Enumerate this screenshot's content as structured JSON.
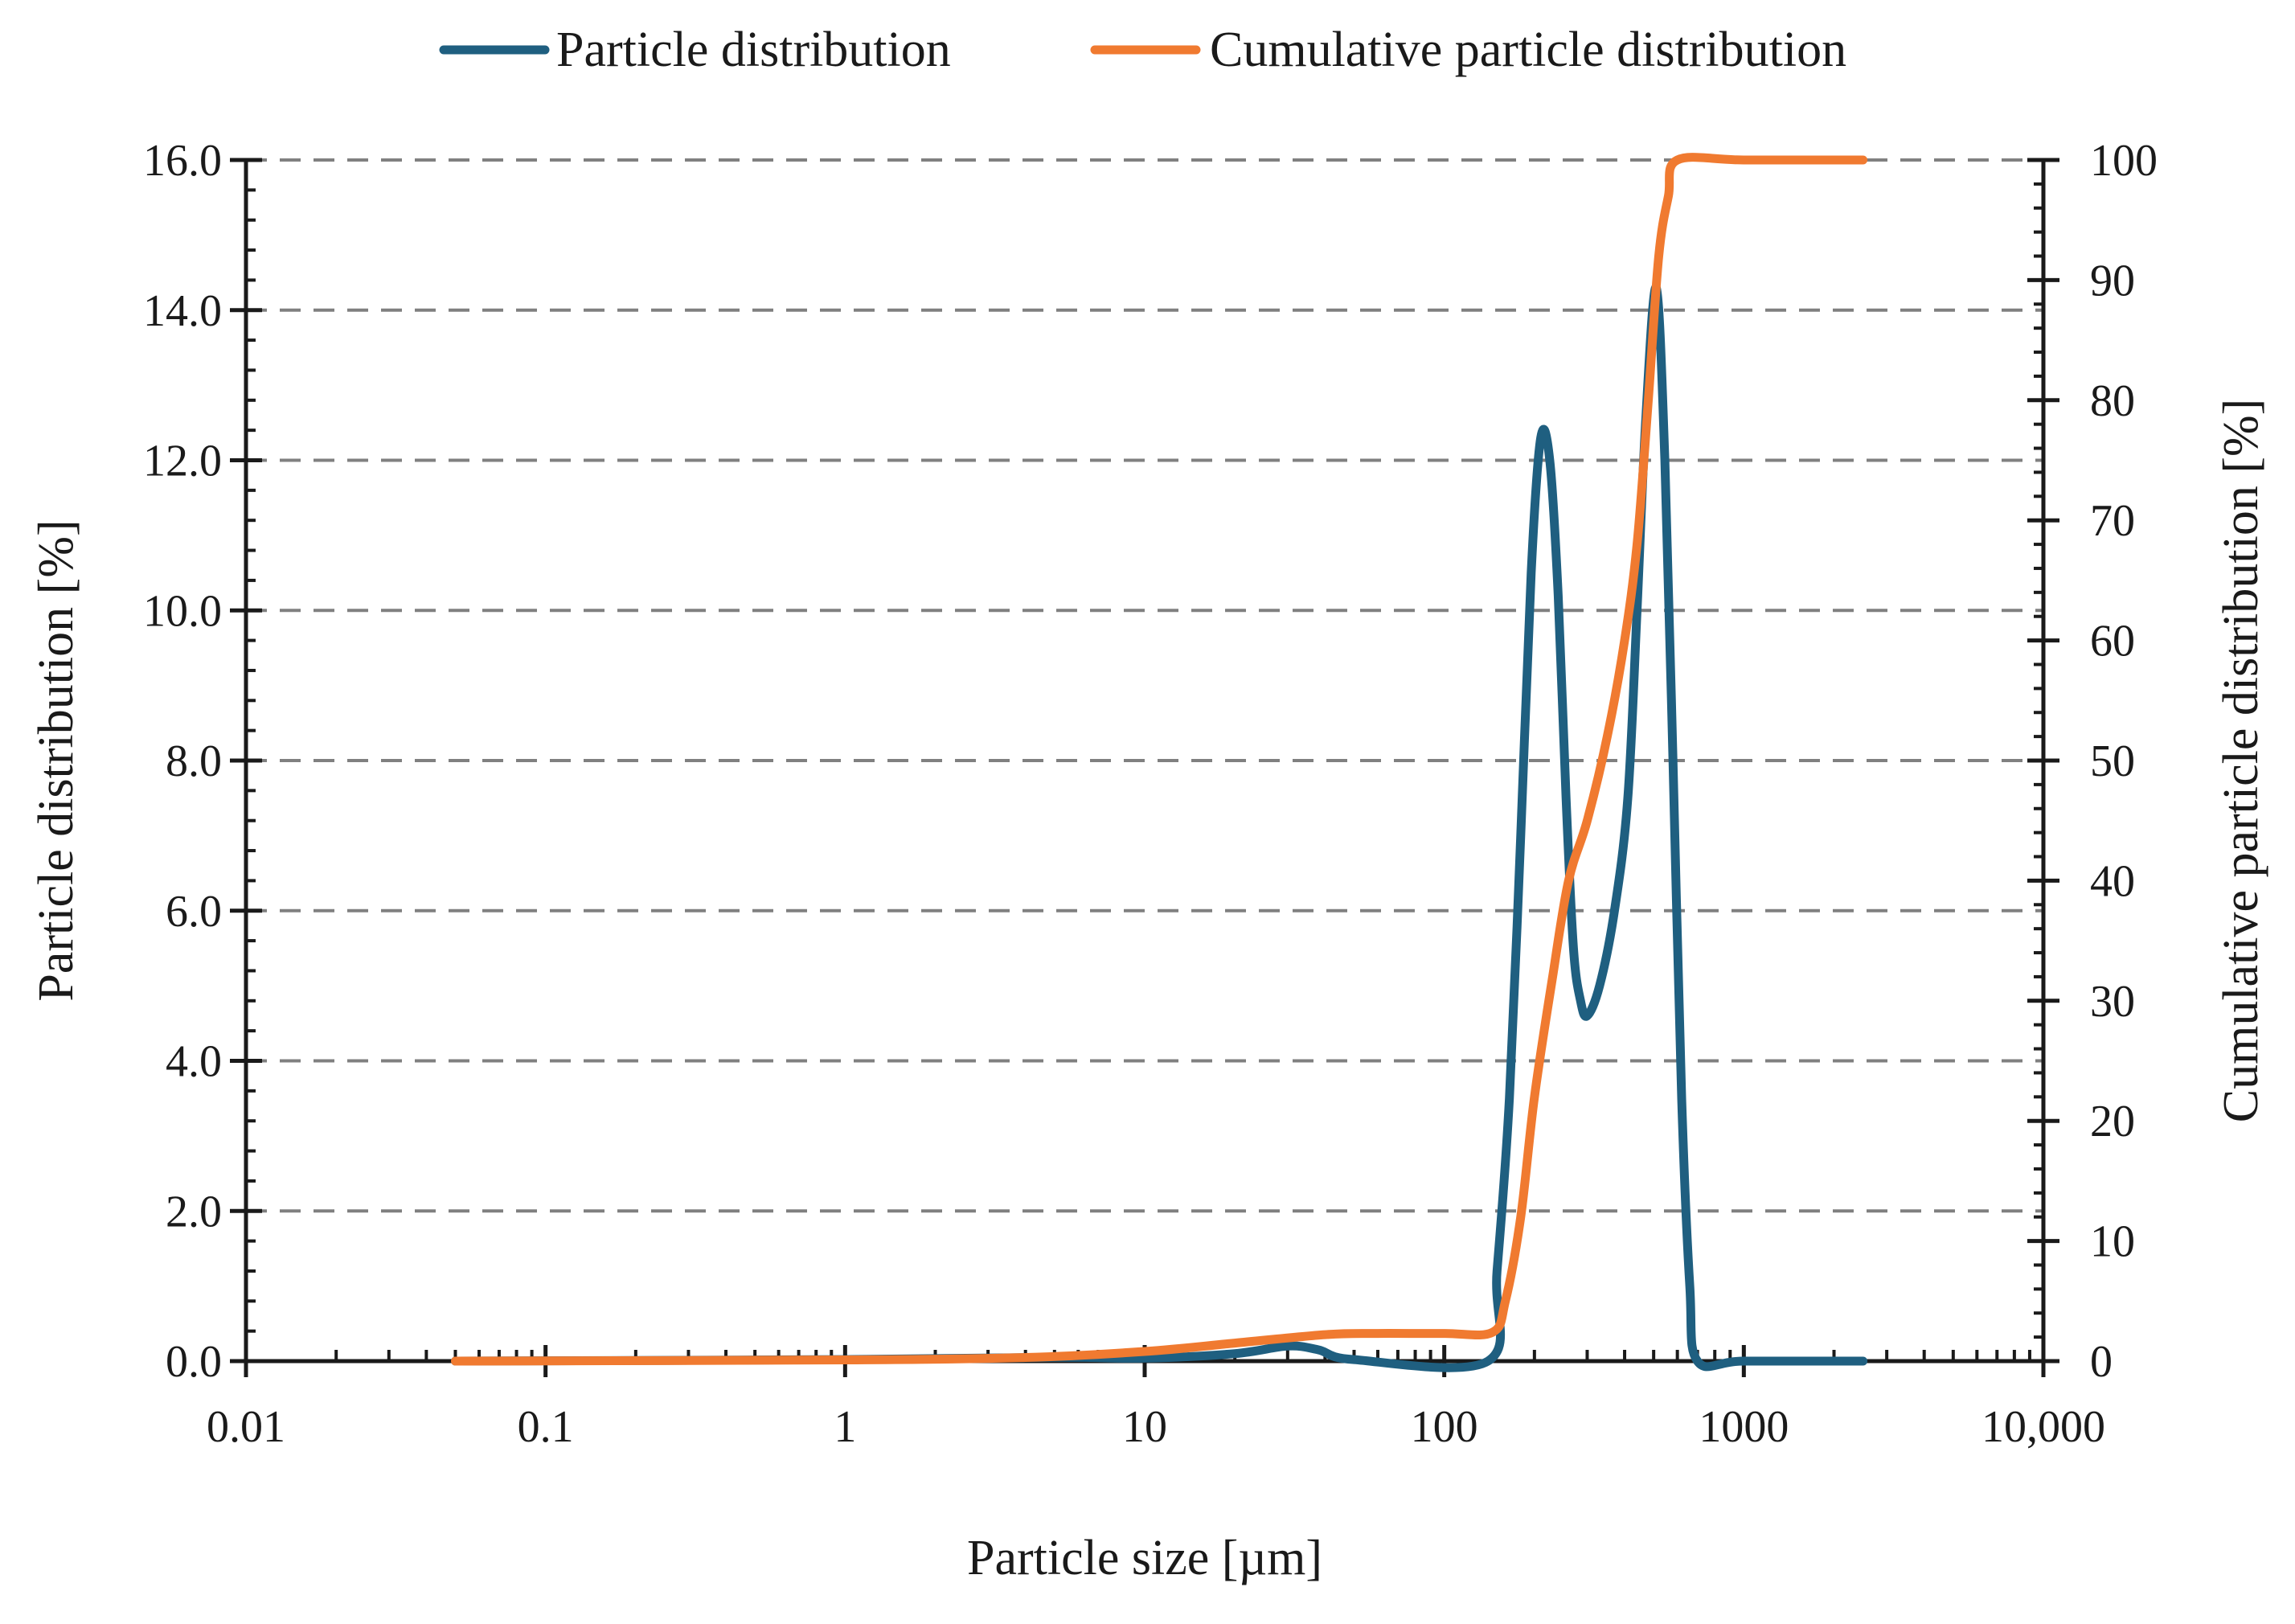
{
  "chart_data": {
    "type": "line",
    "title": "",
    "xlabel": "Particle size [µm]",
    "ylabel": "Particle distribution [%]",
    "y2label": "Cumulative particle distribution [%]",
    "xscale": "log",
    "xlim": [
      0.01,
      10000
    ],
    "ylim": [
      0,
      16
    ],
    "y2lim": [
      0,
      100
    ],
    "grid": "horizontal dashed",
    "legend": "top",
    "x_ticks": [
      "0.01",
      "0.1",
      "1",
      "10",
      "100",
      "1000",
      "10,000"
    ],
    "y_ticks": [
      "0.0",
      "2.0",
      "4.0",
      "6.0",
      "8.0",
      "10.0",
      "12.0",
      "14.0",
      "16.0"
    ],
    "y2_ticks": [
      "0",
      "10",
      "20",
      "30",
      "40",
      "50",
      "60",
      "70",
      "80",
      "90",
      "100"
    ],
    "series": [
      {
        "name": "Particle distribution",
        "axis": "left",
        "color": "#1f5f80",
        "points": [
          [
            0.05,
            0
          ],
          [
            1,
            0.02
          ],
          [
            5,
            0.05
          ],
          [
            10,
            0.04
          ],
          [
            20,
            0.1
          ],
          [
            30,
            0.2
          ],
          [
            38,
            0.15
          ],
          [
            50,
            0.02
          ],
          [
            140,
            0
          ],
          [
            150,
            1.2
          ],
          [
            165,
            3.5
          ],
          [
            180,
            7.0
          ],
          [
            195,
            10.5
          ],
          [
            210,
            12.3
          ],
          [
            225,
            12.0
          ],
          [
            240,
            10.2
          ],
          [
            255,
            7.5
          ],
          [
            270,
            5.5
          ],
          [
            285,
            4.8
          ],
          [
            300,
            4.6
          ],
          [
            330,
            5.0
          ],
          [
            370,
            6.0
          ],
          [
            410,
            7.5
          ],
          [
            440,
            10.0
          ],
          [
            470,
            12.5
          ],
          [
            510,
            14.3
          ],
          [
            545,
            12.0
          ],
          [
            580,
            8.0
          ],
          [
            620,
            3.5
          ],
          [
            660,
            1.0
          ],
          [
            700,
            0
          ],
          [
            1000,
            0
          ],
          [
            2500,
            0
          ]
        ]
      },
      {
        "name": "Cumulative particle distribution",
        "axis": "right",
        "color": "#f07a30",
        "points": [
          [
            0.05,
            0
          ],
          [
            1,
            0.1
          ],
          [
            4,
            0.3
          ],
          [
            10,
            0.8
          ],
          [
            20,
            1.5
          ],
          [
            40,
            2.2
          ],
          [
            60,
            2.3
          ],
          [
            100,
            2.3
          ],
          [
            145,
            2.4
          ],
          [
            160,
            5
          ],
          [
            180,
            12
          ],
          [
            200,
            22
          ],
          [
            230,
            32
          ],
          [
            260,
            40
          ],
          [
            300,
            45
          ],
          [
            350,
            52
          ],
          [
            400,
            60
          ],
          [
            440,
            68
          ],
          [
            480,
            80
          ],
          [
            520,
            92
          ],
          [
            560,
            97
          ],
          [
            600,
            100
          ],
          [
            1000,
            100
          ],
          [
            2500,
            100
          ]
        ]
      }
    ]
  }
}
